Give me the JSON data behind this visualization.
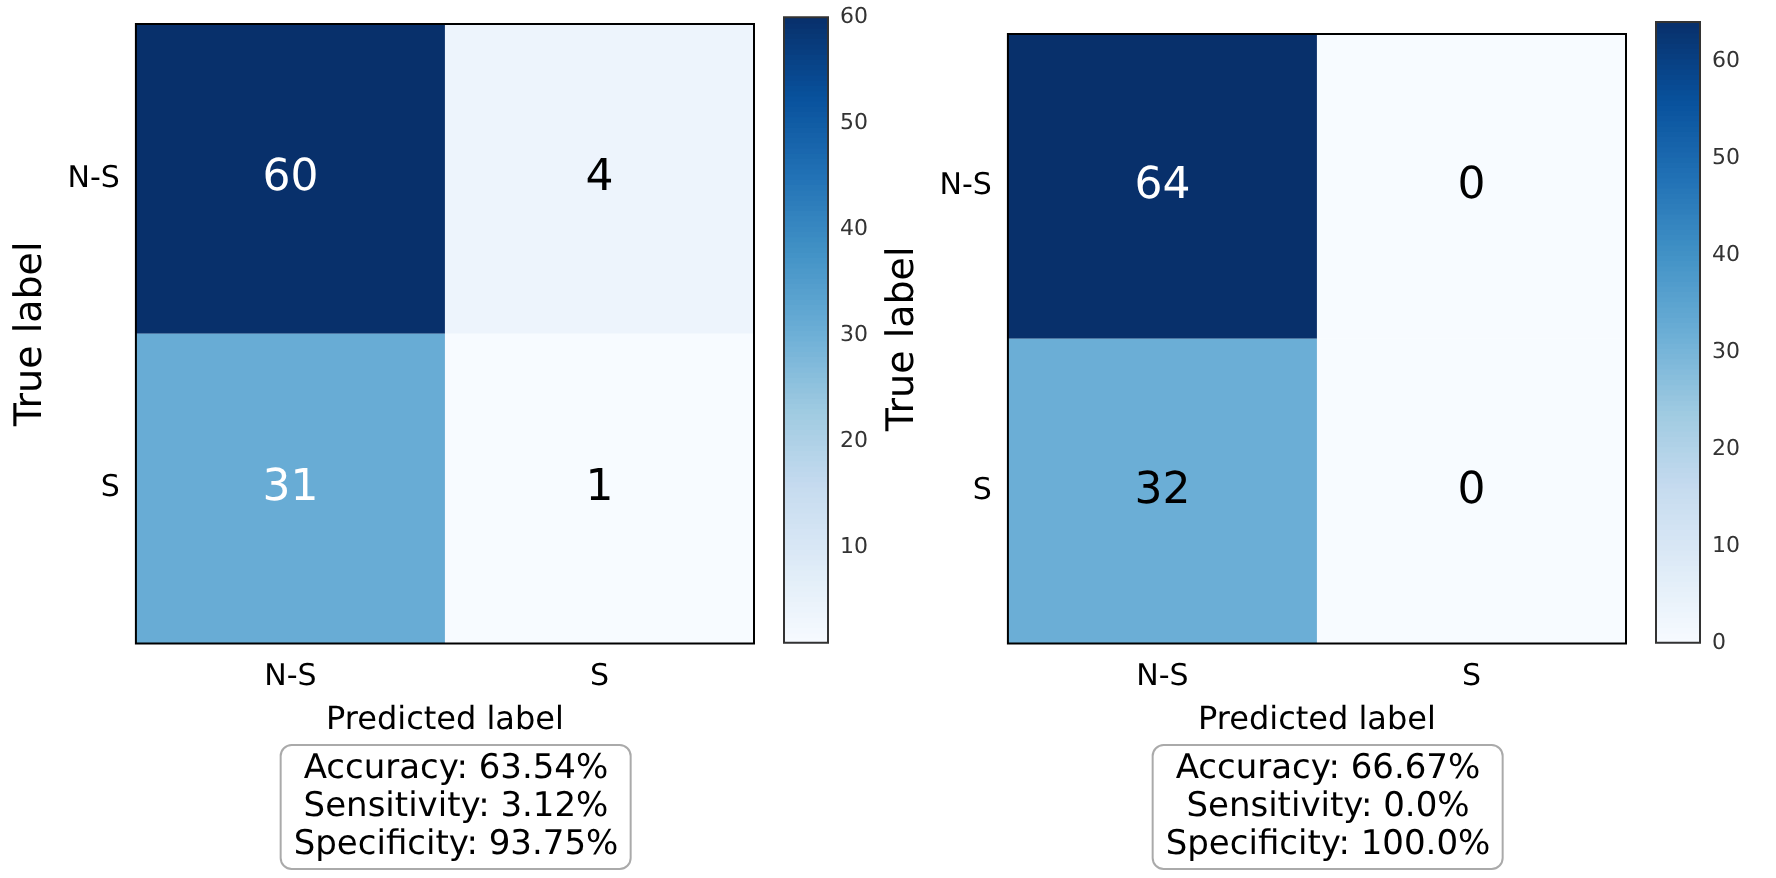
{
  "chart_data": [
    {
      "type": "heatmap",
      "xlabel": "Predicted label",
      "ylabel": "True label",
      "categories": [
        "N-S",
        "S"
      ],
      "y_categories": [
        "N-S",
        "S"
      ],
      "cells": [
        [
          60,
          4
        ],
        [
          31,
          1
        ]
      ],
      "clim": [
        1,
        60
      ],
      "cticks": [
        10,
        20,
        30,
        40,
        50,
        60
      ],
      "data_labels": true,
      "annotations": [
        "Accuracy: 63.54%",
        "Sensitivity: 3.12%",
        "Specificity: 93.75%"
      ]
    },
    {
      "type": "heatmap",
      "xlabel": "Predicted label",
      "ylabel": "True label",
      "categories": [
        "N-S",
        "S"
      ],
      "y_categories": [
        "N-S",
        "S"
      ],
      "cells": [
        [
          64,
          0
        ],
        [
          32,
          0
        ]
      ],
      "clim": [
        0,
        64
      ],
      "cticks": [
        0,
        10,
        20,
        30,
        40,
        50,
        60
      ],
      "data_labels": true,
      "annotations": [
        "Accuracy: 66.67%",
        "Sensitivity: 0.0%",
        "Specificity: 100.0%"
      ]
    }
  ]
}
